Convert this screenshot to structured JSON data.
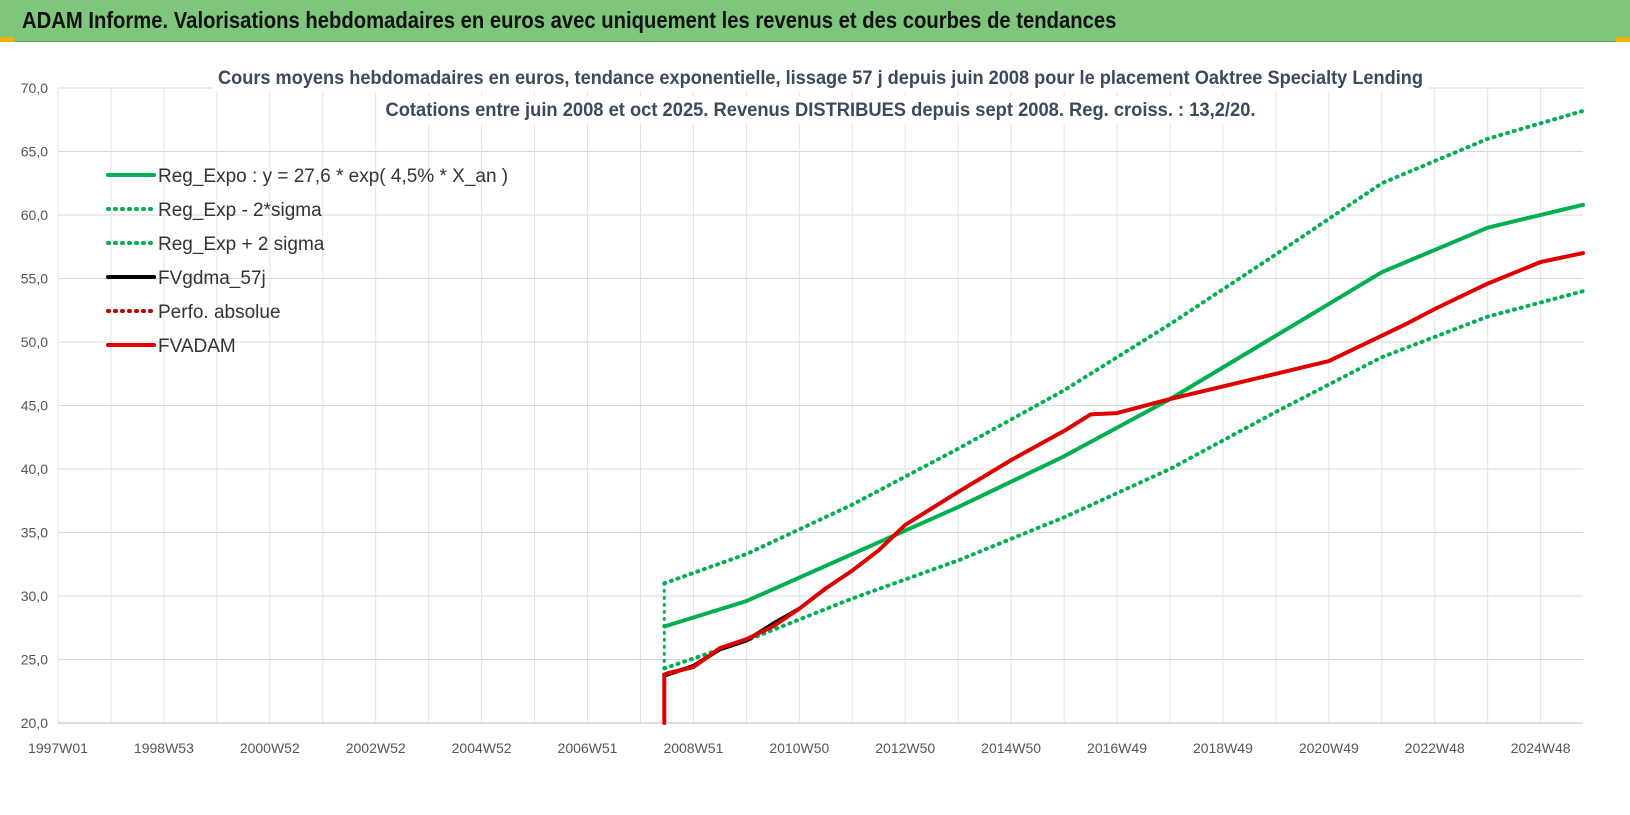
{
  "header": {
    "title": "ADAM Informe. Valorisations hebdomadaires en euros avec uniquement les revenus et des courbes de tendances"
  },
  "chart_data": {
    "type": "line",
    "title_lines": [
      "Cours moyens hebdomadaires en euros, tendance exponentielle, lissage 57 j depuis juin 2008 pour le placement Oaktree Specialty Lending",
      "Cotations entre juin 2008 et oct 2025. Revenus DISTRIBUES depuis sept 2008. Reg. croiss. : 13,2/20."
    ],
    "x_range": [
      1997.0,
      2025.8
    ],
    "ylim": [
      20,
      70
    ],
    "y_ticks": [
      "20,0",
      "25,0",
      "30,0",
      "35,0",
      "40,0",
      "45,0",
      "50,0",
      "55,0",
      "60,0",
      "65,0",
      "70,0"
    ],
    "x_ticks": [
      {
        "label": "1997W01",
        "t": 1997.0
      },
      {
        "label": "1998W53",
        "t": 1999.0
      },
      {
        "label": "2000W52",
        "t": 2001.0
      },
      {
        "label": "2002W52",
        "t": 2003.0
      },
      {
        "label": "2004W52",
        "t": 2005.0
      },
      {
        "label": "2006W51",
        "t": 2007.0
      },
      {
        "label": "2008W51",
        "t": 2009.0
      },
      {
        "label": "2010W50",
        "t": 2011.0
      },
      {
        "label": "2012W50",
        "t": 2013.0
      },
      {
        "label": "2014W50",
        "t": 2015.0
      },
      {
        "label": "2016W49",
        "t": 2017.0
      },
      {
        "label": "2018W49",
        "t": 2019.0
      },
      {
        "label": "2020W49",
        "t": 2021.0
      },
      {
        "label": "2022W48",
        "t": 2023.0
      },
      {
        "label": "2024W48",
        "t": 2025.0
      }
    ],
    "grid": true,
    "legend_position": "top-left",
    "series": [
      {
        "name": "Reg_Expo : y = 27,6 * exp( 4,5% *  X_an )",
        "style": "solid",
        "color": "#00b050",
        "x": [
          2008.45,
          2010,
          2012,
          2014,
          2016,
          2018,
          2020,
          2022,
          2024,
          2025.8
        ],
        "y": [
          27.6,
          29.6,
          33.3,
          37.0,
          41.0,
          45.5,
          50.5,
          55.5,
          59.0,
          60.8
        ]
      },
      {
        "name": "Reg_Exp - 2*sigma",
        "style": "dotted",
        "color": "#00b050",
        "x": [
          2008.45,
          2010,
          2012,
          2014,
          2016,
          2018,
          2020,
          2022,
          2024,
          2025.8
        ],
        "y": [
          24.3,
          26.5,
          29.8,
          32.8,
          36.2,
          40.0,
          44.5,
          48.8,
          52.0,
          54.0
        ]
      },
      {
        "name": "Reg_Exp + 2 sigma",
        "style": "dotted",
        "color": "#00b050",
        "x": [
          2008.45,
          2010,
          2012,
          2014,
          2016,
          2018,
          2020,
          2022,
          2024,
          2025.8
        ],
        "y": [
          31.0,
          33.3,
          37.2,
          41.6,
          46.2,
          51.4,
          56.9,
          62.5,
          66.0,
          68.2
        ]
      },
      {
        "name": "FVgdma_57j",
        "style": "solid",
        "color": "#000000",
        "x": [
          2008.45,
          2008.5,
          2009,
          2009.5,
          2010,
          2010.5,
          2011
        ],
        "y": [
          23.8,
          23.8,
          24.5,
          25.8,
          26.5,
          27.8,
          29.0
        ]
      },
      {
        "name": "Perfo. absolue",
        "style": "dotted",
        "color": "#c00000",
        "x": [],
        "y": []
      },
      {
        "name": "FVADAM",
        "style": "solid",
        "color": "#e00000",
        "x": [
          2008.45,
          2008.45,
          2008.5,
          2009,
          2009.5,
          2010,
          2010.5,
          2011,
          2011.5,
          2012,
          2012.5,
          2013,
          2014,
          2015,
          2016,
          2016.5,
          2017,
          2018,
          2019,
          2020,
          2021,
          2022,
          2022.5,
          2023,
          2024,
          2025,
          2025.8
        ],
        "y": [
          20.0,
          23.8,
          23.9,
          24.4,
          25.9,
          26.6,
          27.6,
          29.0,
          30.6,
          32.0,
          33.6,
          35.6,
          38.2,
          40.7,
          43.0,
          44.3,
          44.4,
          45.5,
          46.5,
          47.5,
          48.5,
          50.5,
          51.5,
          52.6,
          54.6,
          56.3,
          57.0
        ]
      }
    ]
  }
}
